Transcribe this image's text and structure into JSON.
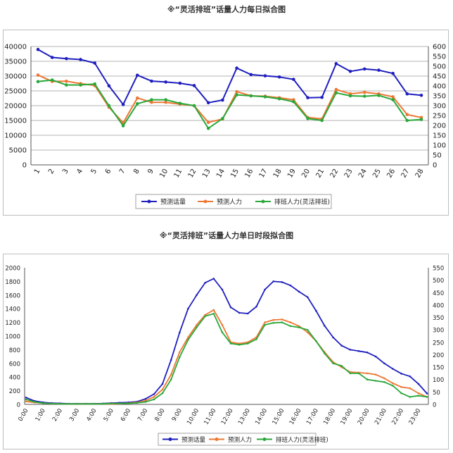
{
  "chart_data": [
    {
      "type": "line",
      "title": "※“灵活排班”话量人力每日拟合图",
      "categories": [
        "1",
        "2",
        "3",
        "4",
        "5",
        "6",
        "7",
        "8",
        "9",
        "10",
        "11",
        "12",
        "13",
        "14",
        "15",
        "16",
        "17",
        "18",
        "19",
        "20",
        "21",
        "22",
        "23",
        "24",
        "25",
        "26",
        "27",
        "28"
      ],
      "left_axis": {
        "min": 0,
        "max": 40000,
        "ticks": [
          "0",
          "5000",
          "10000",
          "15000",
          "20000",
          "25000",
          "30000",
          "35000",
          "40000"
        ]
      },
      "right_axis": {
        "min": 0,
        "max": 600,
        "ticks": [
          "0",
          "50",
          "100",
          "150",
          "200",
          "250",
          "300",
          "350",
          "400",
          "450",
          "500",
          "550",
          "600"
        ]
      },
      "legend": "bottom",
      "series": [
        {
          "name": "预测话量",
          "color": "#1f1fbf",
          "axis": "left",
          "values": [
            39000,
            36300,
            35900,
            35600,
            34400,
            26700,
            20400,
            30300,
            28300,
            28000,
            27600,
            26800,
            21000,
            21900,
            32700,
            30500,
            30100,
            29700,
            28900,
            22700,
            22800,
            34200,
            31600,
            32400,
            32000,
            30900,
            24000,
            23500
          ]
        },
        {
          "name": "预测人力",
          "color": "#ee7733",
          "axis": "right",
          "values": [
            455,
            423,
            424,
            412,
            402,
            292,
            213,
            339,
            317,
            317,
            308,
            300,
            215,
            233,
            371,
            350,
            348,
            340,
            330,
            240,
            233,
            382,
            360,
            368,
            360,
            345,
            255,
            240
          ]
        },
        {
          "name": "排班人力(灵活排班)",
          "color": "#2aa83a",
          "axis": "right",
          "values": [
            422,
            430,
            405,
            405,
            410,
            300,
            198,
            310,
            330,
            330,
            312,
            300,
            185,
            235,
            355,
            350,
            345,
            335,
            320,
            235,
            225,
            365,
            350,
            348,
            352,
            330,
            225,
            230
          ]
        }
      ]
    },
    {
      "type": "line",
      "title": "※“灵活排班”话量人力单日时段拟合图",
      "categories": [
        "0:00",
        "0:30",
        "1:00",
        "1:30",
        "2:00",
        "2:30",
        "3:00",
        "3:30",
        "4:00",
        "4:30",
        "5:00",
        "5:30",
        "6:00",
        "6:30",
        "7:00",
        "7:30",
        "8:00",
        "8:30",
        "9:00",
        "9:30",
        "10:00",
        "10:30",
        "11:00",
        "11:30",
        "12:00",
        "12:30",
        "13:00",
        "13:30",
        "14:00",
        "14:30",
        "15:00",
        "15:30",
        "16:00",
        "16:30",
        "17:00",
        "17:30",
        "18:00",
        "18:30",
        "19:00",
        "19:30",
        "20:00",
        "20:30",
        "21:00",
        "21:30",
        "22:00",
        "22:30",
        "23:00",
        "23:30"
      ],
      "tick_labels": [
        "0:00",
        "1:00",
        "2:00",
        "3:00",
        "4:00",
        "5:00",
        "6:00",
        "7:00",
        "8:00",
        "9:00",
        "10:00",
        "11:00",
        "12:00",
        "13:00",
        "14:00",
        "15:00",
        "16:00",
        "17:00",
        "18:00",
        "19:00",
        "20:00",
        "21:00",
        "22:00",
        "23:00"
      ],
      "left_axis": {
        "min": 0,
        "max": 2000,
        "ticks": [
          "0",
          "200",
          "400",
          "600",
          "800",
          "1000",
          "1200",
          "1400",
          "1600",
          "1800",
          "2000"
        ]
      },
      "right_axis": {
        "min": 0,
        "max": 550,
        "ticks": [
          "0",
          "50",
          "100",
          "150",
          "200",
          "250",
          "300",
          "350",
          "400",
          "450",
          "500",
          "550"
        ]
      },
      "legend": "bottom",
      "series": [
        {
          "name": "预测话量",
          "color": "#1f1fbf",
          "axis": "left",
          "values": [
            100,
            50,
            30,
            20,
            15,
            10,
            10,
            10,
            10,
            12,
            20,
            25,
            30,
            40,
            80,
            150,
            300,
            650,
            1050,
            1400,
            1600,
            1780,
            1840,
            1680,
            1420,
            1340,
            1330,
            1430,
            1680,
            1800,
            1790,
            1740,
            1650,
            1570,
            1370,
            1150,
            980,
            860,
            800,
            780,
            760,
            700,
            600,
            520,
            450,
            410,
            300,
            160
          ]
        },
        {
          "name": "预测人力",
          "color": "#ee7733",
          "axis": "right",
          "values": [
            12,
            8,
            5,
            3,
            2,
            2,
            2,
            2,
            2,
            2,
            2,
            3,
            5,
            8,
            15,
            30,
            60,
            120,
            210,
            270,
            320,
            360,
            380,
            320,
            250,
            245,
            250,
            270,
            330,
            340,
            342,
            330,
            315,
            290,
            255,
            210,
            170,
            150,
            130,
            128,
            125,
            120,
            105,
            85,
            70,
            65,
            45,
            30
          ]
        },
        {
          "name": "排班人力(灵活排班)",
          "color": "#2aa83a",
          "axis": "right",
          "values": [
            20,
            10,
            5,
            3,
            2,
            2,
            2,
            2,
            2,
            2,
            4,
            4,
            4,
            6,
            10,
            20,
            45,
            100,
            190,
            260,
            310,
            355,
            365,
            290,
            245,
            240,
            245,
            262,
            320,
            328,
            330,
            315,
            310,
            300,
            255,
            205,
            165,
            155,
            125,
            125,
            100,
            95,
            90,
            75,
            45,
            30,
            35,
            30
          ]
        }
      ]
    }
  ]
}
